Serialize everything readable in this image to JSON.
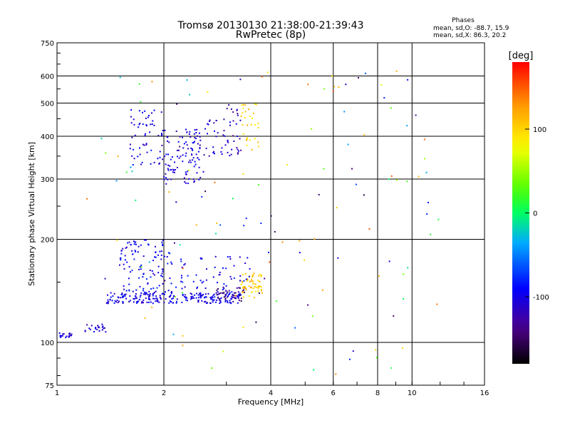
{
  "chart_data": {
    "type": "scatter",
    "title": "Tromsø 20130130 21:38:00-21:39:43",
    "subtitle": "RwPretec (8p)",
    "xlabel": "Frequency [MHz]",
    "ylabel": "Stationary phase Virtual Height [km]",
    "x_scale": "log",
    "y_scale": "log",
    "xlim": [
      1,
      16
    ],
    "ylim": [
      75,
      750
    ],
    "xticks": [
      "1",
      "2",
      "4",
      "6",
      "8",
      "10",
      "16"
    ],
    "yticks": [
      "750",
      "600",
      "500",
      "400",
      "300",
      "200",
      "100",
      "75"
    ],
    "grid": true,
    "info": {
      "heading": "Phases",
      "line1": "mean, sd,O: -88.7, 15.9",
      "line2": "mean, sd,X:  86.3, 20.2"
    },
    "colorbar": {
      "label": "[deg]",
      "range": [
        -180,
        180
      ],
      "ticks": [
        "100",
        "0",
        "-100"
      ],
      "colormap": "rainbow"
    },
    "series": [
      {
        "clusters": [
          {
            "f": [
              1.0,
              1.1
            ],
            "h": [
              103,
              107
            ],
            "n": 22,
            "phase": -105
          },
          {
            "f": [
              1.2,
              1.38
            ],
            "h": [
              106,
              113
            ],
            "n": 22,
            "phase": -110
          },
          {
            "f": [
              1.38,
              3.3
            ],
            "h": [
              130,
              140
            ],
            "n": 230,
            "phase": -100
          },
          {
            "f": [
              2.8,
              3.4
            ],
            "h": [
              132,
              145
            ],
            "n": 40,
            "phase": -140
          },
          {
            "f": [
              3.3,
              3.8
            ],
            "h": [
              135,
              160
            ],
            "n": 60,
            "phase": 105
          },
          {
            "f": [
              1.5,
              2.1
            ],
            "h": [
              140,
              200
            ],
            "n": 110,
            "phase": -95
          },
          {
            "f": [
              2.1,
              3.5
            ],
            "h": [
              140,
              180
            ],
            "n": 60,
            "phase": -95
          },
          {
            "f": [
              1.6,
              2.0
            ],
            "h": [
              330,
              480
            ],
            "n": 60,
            "phase": -100
          },
          {
            "f": [
              2.0,
              2.6
            ],
            "h": [
              290,
              420
            ],
            "n": 110,
            "phase": -105
          },
          {
            "f": [
              2.6,
              3.1
            ],
            "h": [
              350,
              450
            ],
            "n": 30,
            "phase": -110
          },
          {
            "f": [
              3.0,
              3.3
            ],
            "h": [
              350,
              500
            ],
            "n": 25,
            "phase": -120
          },
          {
            "f": [
              3.3,
              3.7
            ],
            "h": [
              360,
              500
            ],
            "n": 30,
            "phase": 100
          },
          {
            "f": [
              1.2,
              12
            ],
            "h": [
              78,
              620
            ],
            "n": 130,
            "phase": 0
          }
        ]
      }
    ]
  }
}
